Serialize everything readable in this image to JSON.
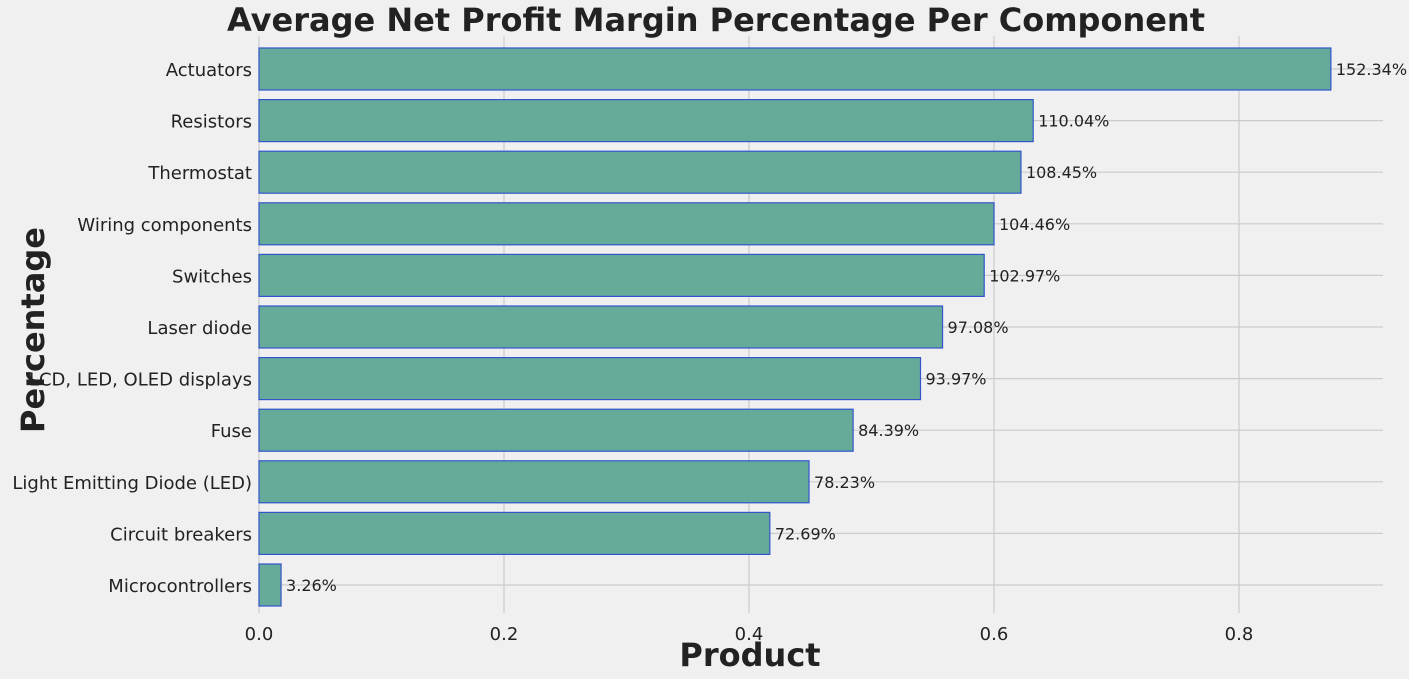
{
  "chart_data": {
    "type": "bar",
    "orientation": "horizontal",
    "title": "Average Net Profit Margin Percentage Per Component",
    "xlabel": "Product",
    "ylabel": "Percentage",
    "categories": [
      "Actuators",
      "Resistors",
      "Thermostat",
      "Wiring components",
      "Switches",
      "Laser diode",
      "LCD, LED, OLED displays",
      "Fuse",
      "Light Emitting Diode (LED)",
      "Circuit breakers",
      "Microcontrollers"
    ],
    "values": [
      0.875,
      0.632,
      0.622,
      0.6,
      0.592,
      0.558,
      0.54,
      0.485,
      0.449,
      0.417,
      0.018
    ],
    "data_labels": [
      "152.34%",
      "110.04%",
      "108.45%",
      "104.46%",
      "102.97%",
      "97.08%",
      "93.97%",
      "84.39%",
      "78.23%",
      "72.69%",
      "3.26%"
    ],
    "xlim": [
      0,
      0.92
    ],
    "xticks": [
      0.0,
      0.2,
      0.4,
      0.6,
      0.8
    ],
    "xtick_labels": [
      "0.0",
      "0.2",
      "0.4",
      "0.6",
      "0.8"
    ],
    "grid": true,
    "colors": {
      "background": "#f0f0f0",
      "bar_fill": "#66aa99",
      "bar_edge": "#3355cc",
      "grid": "#cbcbcb",
      "text": "#222222"
    }
  }
}
